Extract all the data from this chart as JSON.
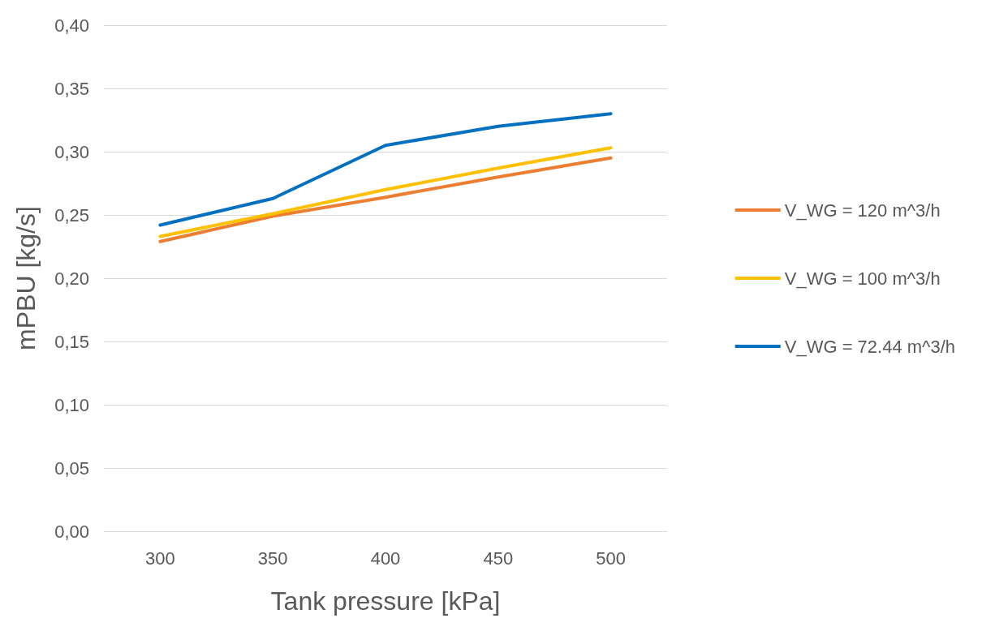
{
  "chart_data": {
    "type": "line",
    "xlabel": "Tank pressure [kPa]",
    "ylabel": "mPBU [kg/s]",
    "categories": [
      "300",
      "350",
      "400",
      "450",
      "500"
    ],
    "series": [
      {
        "name": "V_WG = 120 m^3/h",
        "color": "#ed7d31",
        "values": [
          0.229,
          0.249,
          0.264,
          0.28,
          0.295
        ]
      },
      {
        "name": "V_WG = 100 m^3/h",
        "color": "#ffc000",
        "values": [
          0.233,
          0.251,
          0.27,
          0.287,
          0.303
        ]
      },
      {
        "name": "V_WG = 72.44 m^3/h",
        "color": "#0070c0",
        "values": [
          0.242,
          0.263,
          0.305,
          0.32,
          0.33
        ]
      }
    ],
    "ylim": [
      0,
      0.4
    ],
    "yticks": [
      {
        "value": 0,
        "label": "0,00"
      },
      {
        "value": 0.05,
        "label": "0,05"
      },
      {
        "value": 0.1,
        "label": "0,10"
      },
      {
        "value": 0.15,
        "label": "0,15"
      },
      {
        "value": 0.2,
        "label": "0,20"
      },
      {
        "value": 0.25,
        "label": "0,25"
      },
      {
        "value": 0.3,
        "label": "0,30"
      },
      {
        "value": 0.35,
        "label": "0,35"
      },
      {
        "value": 0.4,
        "label": "0,40"
      }
    ],
    "grid": "y",
    "legend": "right",
    "marker": "none",
    "line_style": "solid"
  }
}
